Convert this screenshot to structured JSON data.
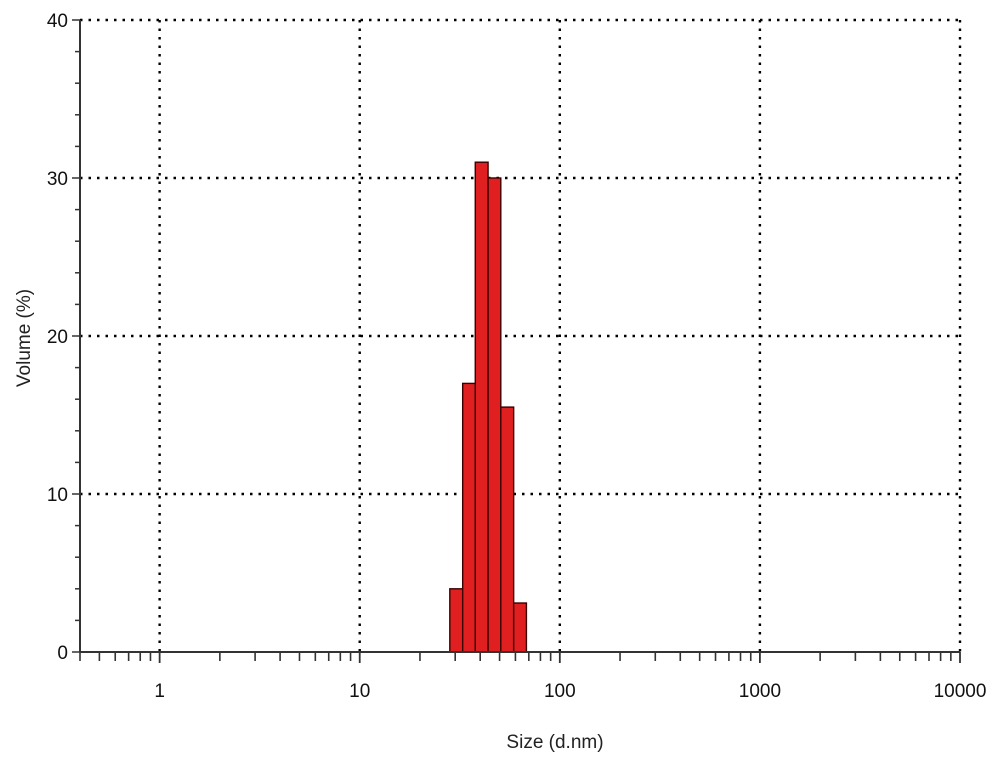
{
  "chart_data": {
    "type": "bar",
    "title": "",
    "xlabel": "Size (d.nm)",
    "ylabel": "Volume (%)",
    "x_scale": "log",
    "xlim": [
      0.4,
      10000
    ],
    "ylim": [
      0,
      40
    ],
    "grid": true,
    "x_ticks": [
      {
        "value": 1,
        "label": "1"
      },
      {
        "value": 10,
        "label": "10"
      },
      {
        "value": 100,
        "label": "100"
      },
      {
        "value": 1000,
        "label": "1000"
      },
      {
        "value": 10000,
        "label": "10000"
      }
    ],
    "y_ticks": [
      {
        "value": 0,
        "label": "0"
      },
      {
        "value": 10,
        "label": "10"
      },
      {
        "value": 20,
        "label": "20"
      },
      {
        "value": 30,
        "label": "30"
      },
      {
        "value": 40,
        "label": "40"
      }
    ],
    "bins": [
      {
        "x_start": 28.2,
        "x_end": 32.7,
        "value": 4.0
      },
      {
        "x_start": 32.7,
        "x_end": 37.8,
        "value": 17.0
      },
      {
        "x_start": 37.8,
        "x_end": 43.8,
        "value": 31.0
      },
      {
        "x_start": 43.8,
        "x_end": 50.7,
        "value": 30.0
      },
      {
        "x_start": 50.7,
        "x_end": 58.8,
        "value": 15.5
      },
      {
        "x_start": 58.8,
        "x_end": 68.1,
        "value": 3.1
      }
    ],
    "bar_color": "#e02020",
    "bar_edge_color": "#3a0000",
    "grid_color": "#000000",
    "axis_color": "#333333"
  }
}
